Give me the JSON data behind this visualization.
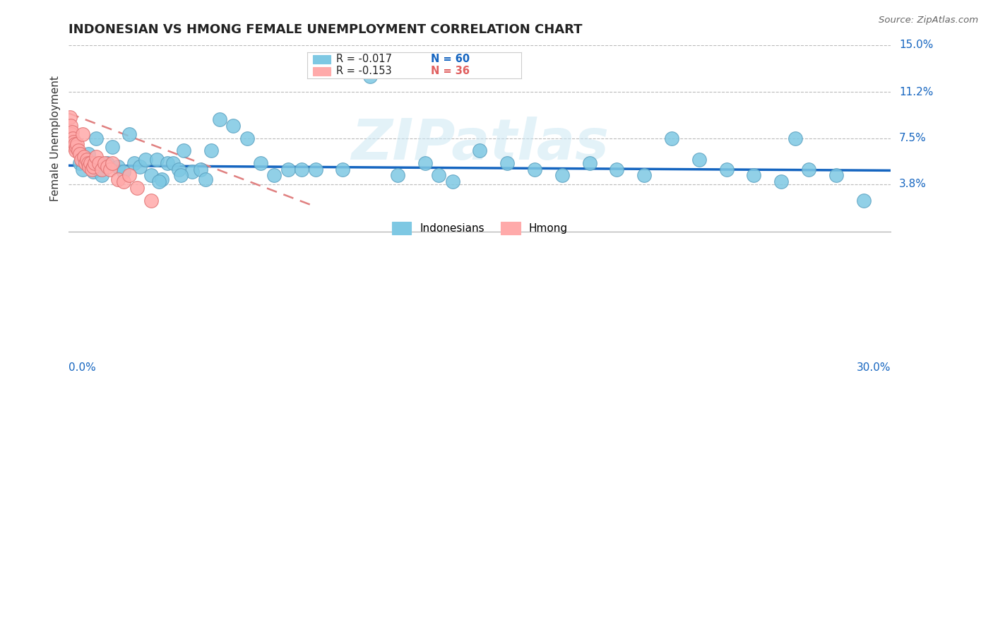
{
  "title": "INDONESIAN VS HMONG FEMALE UNEMPLOYMENT CORRELATION CHART",
  "source": "Source: ZipAtlas.com",
  "ylabel": "Female Unemployment",
  "xmin": 0.0,
  "xmax": 30.0,
  "ymin": 0.0,
  "ymax": 15.0,
  "indonesian_color": "#7ec8e3",
  "indonesian_edge": "#5aa0c0",
  "hmong_color": "#ffaaaa",
  "hmong_edge": "#e07070",
  "trend_indo_color": "#1565C0",
  "trend_hmong_color": "#e08080",
  "indonesian_R": -0.017,
  "indonesian_N": 60,
  "hmong_R": -0.153,
  "hmong_N": 36,
  "watermark": "ZIPatlas",
  "ytick_vals": [
    3.8,
    7.5,
    11.2,
    15.0
  ],
  "ytick_labels": [
    "3.8%",
    "7.5%",
    "11.2%",
    "15.0%"
  ],
  "indonesian_x": [
    0.4,
    0.5,
    0.6,
    0.7,
    0.8,
    0.9,
    1.0,
    1.1,
    1.2,
    1.4,
    1.6,
    1.8,
    2.0,
    2.2,
    2.4,
    2.6,
    2.8,
    3.0,
    3.2,
    3.4,
    3.6,
    3.8,
    4.0,
    4.2,
    4.5,
    4.8,
    5.0,
    5.5,
    6.0,
    6.5,
    7.0,
    7.5,
    8.0,
    8.5,
    9.0,
    10.0,
    11.0,
    12.0,
    13.0,
    14.0,
    15.0,
    16.0,
    17.0,
    18.0,
    19.0,
    20.0,
    21.0,
    22.0,
    24.0,
    25.0,
    26.0,
    27.0,
    28.0,
    29.0,
    3.3,
    4.1,
    5.2,
    13.5,
    23.0,
    26.5
  ],
  "indonesian_y": [
    5.5,
    5.0,
    5.8,
    6.2,
    5.3,
    4.8,
    7.5,
    5.0,
    4.5,
    5.5,
    6.8,
    5.2,
    4.8,
    7.8,
    5.5,
    5.2,
    5.8,
    4.5,
    5.8,
    4.2,
    5.5,
    5.5,
    5.0,
    6.5,
    4.8,
    5.0,
    4.2,
    9.0,
    8.5,
    7.5,
    5.5,
    4.5,
    5.0,
    5.0,
    5.0,
    5.0,
    12.5,
    4.5,
    5.5,
    4.0,
    6.5,
    5.5,
    5.0,
    4.5,
    5.5,
    5.0,
    4.5,
    7.5,
    5.0,
    4.5,
    4.0,
    5.0,
    4.5,
    2.5,
    4.0,
    4.5,
    6.5,
    4.5,
    5.8,
    7.5
  ],
  "hmong_x": [
    0.05,
    0.08,
    0.1,
    0.12,
    0.15,
    0.18,
    0.2,
    0.22,
    0.25,
    0.28,
    0.3,
    0.35,
    0.4,
    0.45,
    0.5,
    0.55,
    0.6,
    0.65,
    0.7,
    0.75,
    0.8,
    0.85,
    0.9,
    0.95,
    1.0,
    1.1,
    1.2,
    1.3,
    1.4,
    1.5,
    1.6,
    1.8,
    2.0,
    2.2,
    2.5,
    3.0
  ],
  "hmong_y": [
    9.2,
    8.5,
    7.8,
    8.0,
    7.5,
    7.2,
    6.8,
    7.0,
    6.5,
    6.8,
    7.0,
    6.5,
    6.2,
    5.8,
    7.8,
    6.0,
    5.5,
    5.8,
    5.5,
    5.2,
    5.5,
    5.0,
    5.2,
    5.5,
    6.0,
    5.5,
    5.0,
    5.5,
    5.2,
    5.0,
    5.5,
    4.2,
    4.0,
    4.5,
    3.5,
    2.5
  ],
  "indo_trend_x0": 0.0,
  "indo_trend_x1": 30.0,
  "indo_trend_y0": 5.3,
  "indo_trend_y1": 4.9,
  "hmong_trend_x0": 0.0,
  "hmong_trend_x1": 9.0,
  "hmong_trend_y0": 9.5,
  "hmong_trend_y1": 2.0
}
